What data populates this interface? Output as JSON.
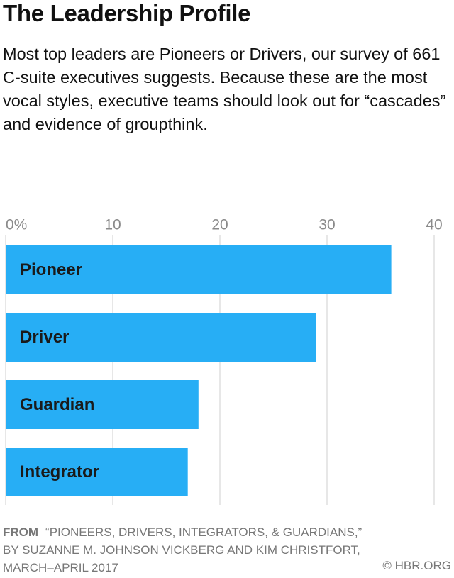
{
  "chart_data": {
    "type": "bar",
    "orientation": "horizontal",
    "title": "The Leadership Profile",
    "subtitle": "Most top leaders are Pioneers or Drivers, our survey of 661 C-suite executives suggests. Because these are the most vocal styles, executive teams should look out for “cascades” and evidence of groupthink.",
    "categories": [
      "Pioneer",
      "Driver",
      "Guardian",
      "Integrator"
    ],
    "values": [
      36,
      29,
      18,
      17
    ],
    "color": "#27aef5",
    "xlim": [
      0,
      40
    ],
    "xticks": [
      {
        "value": 0,
        "label": "0%"
      },
      10,
      20,
      30,
      40
    ],
    "grid": true,
    "source_label": "FROM",
    "source": "“PIONEERS, DRIVERS, INTEGRATORS, & GUARDIANS,” BY SUZANNE M. JOHNSON VICKBERG AND KIM CHRISTFORT, MARCH–APRIL 2017",
    "copyright": "© HBR.ORG"
  }
}
